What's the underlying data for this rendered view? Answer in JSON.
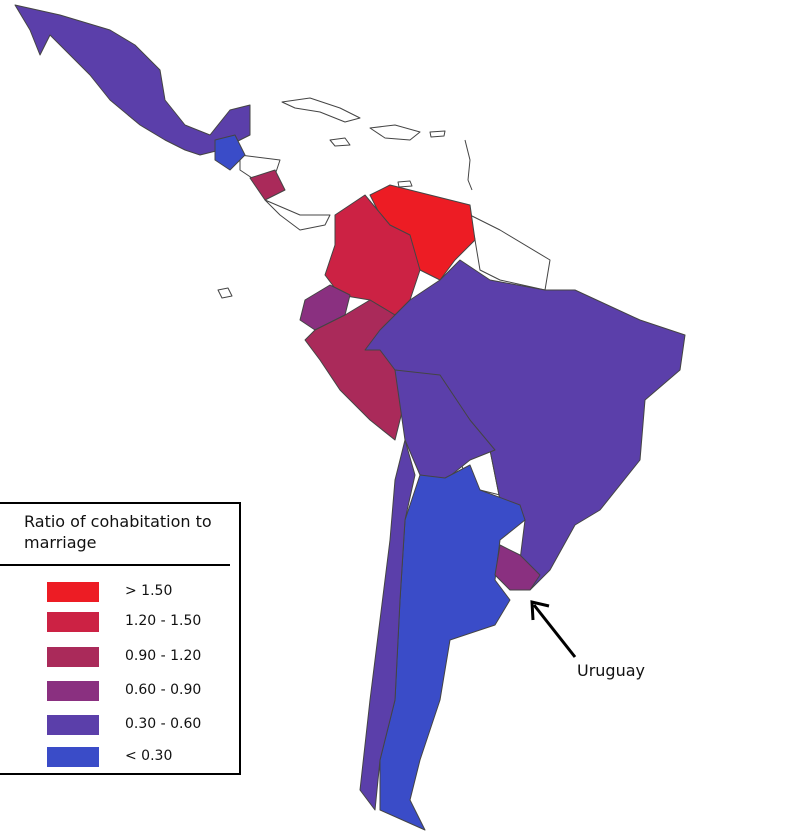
{
  "legend": {
    "title": "Ratio of cohabitation to marriage",
    "items": [
      {
        "label": "> 1.50",
        "color": "#ed1c24"
      },
      {
        "label": "1.20 - 1.50",
        "color": "#cc2244"
      },
      {
        "label": "0.90 - 1.20",
        "color": "#aa2a5a"
      },
      {
        "label": "0.60 - 0.90",
        "color": "#8a3080"
      },
      {
        "label": "0.30 - 0.60",
        "color": "#5b3faa"
      },
      {
        "label": "< 0.30",
        "color": "#3a4cc8"
      }
    ]
  },
  "annotation": "Uruguay"
}
